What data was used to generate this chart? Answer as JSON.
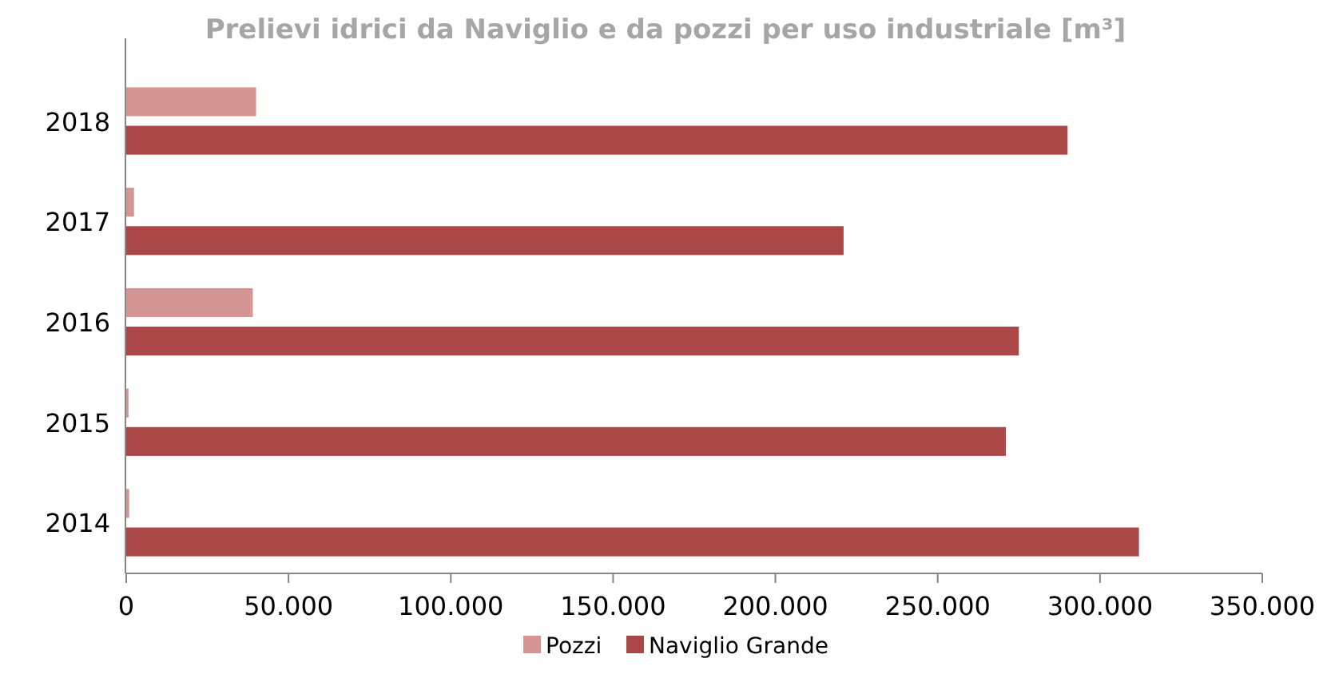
{
  "chart_data": {
    "type": "bar",
    "orientation": "horizontal",
    "title": "Prelievi idrici da Naviglio e da pozzi per uso industriale [m³]",
    "categories": [
      "2018",
      "2017",
      "2016",
      "2015",
      "2014"
    ],
    "series": [
      {
        "name": "Pozzi",
        "color": "#d59593",
        "values": [
          40000,
          2400,
          39000,
          700,
          900
        ]
      },
      {
        "name": "Naviglio Grande",
        "color": "#a94846",
        "values": [
          290000,
          221000,
          275000,
          271000,
          312000
        ]
      }
    ],
    "xlim": [
      0,
      350000
    ],
    "xticks": [
      {
        "value": 0,
        "label": "0"
      },
      {
        "value": 50000,
        "label": "50.000"
      },
      {
        "value": 100000,
        "label": "100.000"
      },
      {
        "value": 150000,
        "label": "150.000"
      },
      {
        "value": 200000,
        "label": "200.000"
      },
      {
        "value": 250000,
        "label": "250.000"
      },
      {
        "value": 300000,
        "label": "300.000"
      },
      {
        "value": 350000,
        "label": "350.000"
      }
    ],
    "grid": false,
    "legend": "bottom"
  }
}
